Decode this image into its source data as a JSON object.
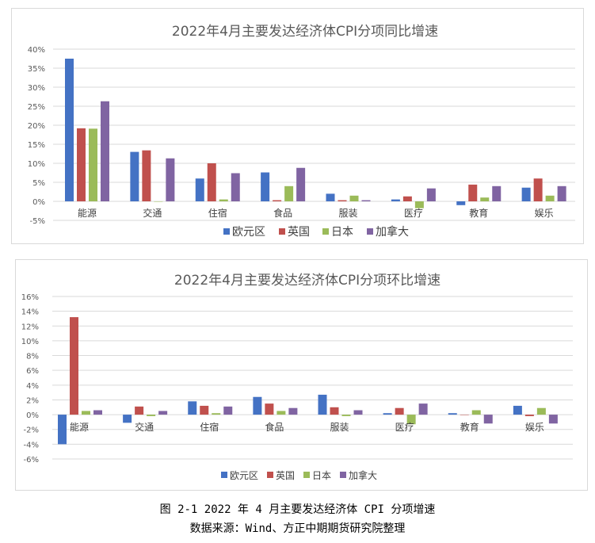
{
  "colors": {
    "series": [
      "#4472c4",
      "#c0504d",
      "#9bbb59",
      "#8064a2"
    ],
    "grid": "#d9d9d9",
    "axis_text": "#595959",
    "title_text": "#595959"
  },
  "caption": {
    "figure": "图 2-1 2022 年 4 月主要发达经济体 CPI 分项增速",
    "source": "数据来源：Wind、方正中期期货研究院整理"
  },
  "chart_data": [
    {
      "type": "bar",
      "title": "2022年4月主要发达经济体CPI分项同比增速",
      "categories": [
        "能源",
        "交通",
        "住宿",
        "食品",
        "服装",
        "医疗",
        "教育",
        "娱乐"
      ],
      "series": [
        {
          "name": "欧元区",
          "values": [
            37.5,
            13.0,
            6.0,
            7.6,
            2.0,
            0.5,
            -1.0,
            3.6
          ]
        },
        {
          "name": "英国",
          "values": [
            19.2,
            13.4,
            10.0,
            0.3,
            0.3,
            1.3,
            4.4,
            6.0
          ]
        },
        {
          "name": "日本",
          "values": [
            19.1,
            0.0,
            0.5,
            4.0,
            1.5,
            -1.8,
            1.0,
            1.5
          ]
        },
        {
          "name": "加拿大",
          "values": [
            26.3,
            11.3,
            7.4,
            8.8,
            0.3,
            3.4,
            4.0,
            4.0
          ]
        }
      ],
      "ylim": [
        -5,
        40
      ],
      "yticks": [
        "-5%",
        "0%",
        "5%",
        "10%",
        "15%",
        "20%",
        "25%",
        "30%",
        "35%",
        "40%"
      ],
      "grid": true,
      "legend": "bottom"
    },
    {
      "type": "bar",
      "title": "2022年4月主要发达经济体CPI分项环比增速",
      "categories": [
        "能源",
        "交通",
        "住宿",
        "食品",
        "服装",
        "医疗",
        "教育",
        "娱乐"
      ],
      "series": [
        {
          "name": "欧元区",
          "values": [
            -4.0,
            -1.1,
            1.8,
            2.4,
            2.7,
            0.2,
            0.2,
            1.2
          ]
        },
        {
          "name": "英国",
          "values": [
            13.2,
            1.1,
            1.2,
            1.5,
            1.0,
            0.9,
            0.0,
            -0.2
          ]
        },
        {
          "name": "日本",
          "values": [
            0.5,
            -0.2,
            0.2,
            0.5,
            -0.2,
            -1.3,
            0.6,
            0.9
          ]
        },
        {
          "name": "加拿大",
          "values": [
            0.6,
            0.5,
            1.1,
            0.9,
            0.6,
            1.5,
            -1.2,
            -1.2
          ]
        }
      ],
      "ylim": [
        -6,
        16
      ],
      "yticks": [
        "-6%",
        "-4%",
        "-2%",
        "0%",
        "2%",
        "4%",
        "6%",
        "8%",
        "10%",
        "12%",
        "14%",
        "16%"
      ],
      "grid": true,
      "legend": "bottom"
    }
  ]
}
